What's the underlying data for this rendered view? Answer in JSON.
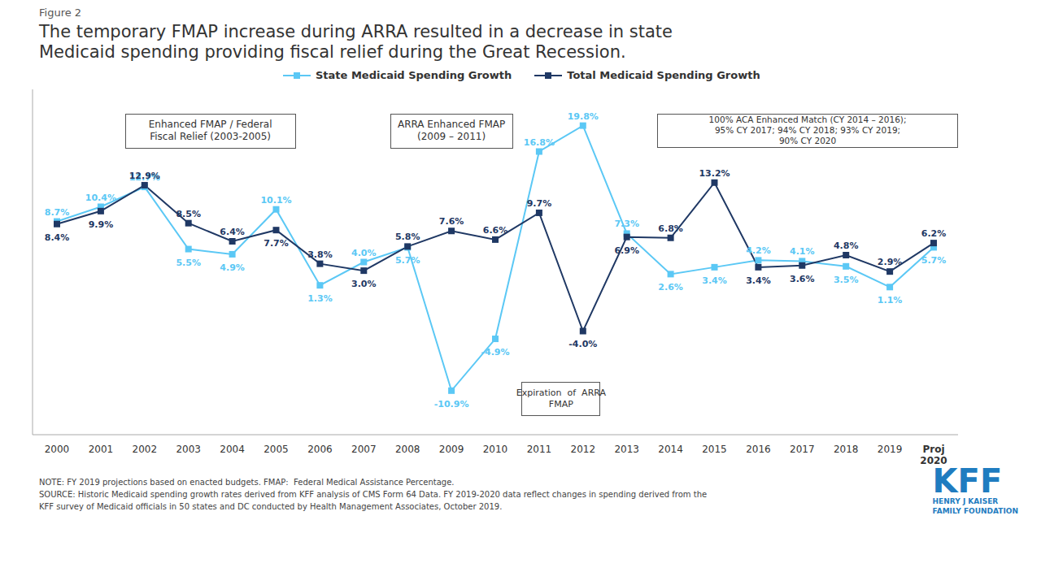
{
  "chart_data": {
    "type": "line",
    "subtitle": "Figure 2",
    "title": "The temporary FMAP increase during ARRA resulted in a decrease in state\nMedicaid spending providing fiscal relief during the Great Recession.",
    "categories": [
      "2000",
      "2001",
      "2002",
      "2003",
      "2004",
      "2005",
      "2006",
      "2007",
      "2008",
      "2009",
      "2010",
      "2011",
      "2012",
      "2013",
      "2014",
      "2015",
      "2016",
      "2017",
      "2018",
      "2019",
      "Proj\n2020"
    ],
    "series": [
      {
        "name": "State Medicaid Spending Growth",
        "color": "#5BC8F5",
        "marker": "square",
        "values": [
          8.7,
          10.4,
          12.7,
          5.5,
          4.9,
          10.1,
          1.3,
          4.0,
          5.7,
          -10.9,
          -4.9,
          16.8,
          19.8,
          7.3,
          2.6,
          3.4,
          4.2,
          4.1,
          3.5,
          1.1,
          5.7
        ],
        "value_labels": [
          "8.7%",
          "10.4%",
          "12.7%",
          "5.5%",
          "4.9%",
          "10.1%",
          "1.3%",
          "4.0%",
          "5.7%",
          "-10.9%",
          "-4.9%",
          "16.8%",
          "19.8%",
          "7.3%",
          "2.6%",
          "3.4%",
          "4.2%",
          "4.1%",
          "3.5%",
          "1.1%",
          "5.7%"
        ]
      },
      {
        "name": "Total Medicaid Spending Growth",
        "color": "#1F3864",
        "marker": "square",
        "values": [
          8.4,
          9.9,
          12.9,
          8.5,
          6.4,
          7.7,
          3.8,
          3.0,
          5.8,
          7.6,
          6.6,
          9.7,
          -4.0,
          6.9,
          6.8,
          13.2,
          3.4,
          3.6,
          4.8,
          2.9,
          6.2
        ],
        "value_labels": [
          "8.4%",
          "9.9%",
          "12.9%",
          "8.5%",
          "6.4%",
          "7.7%",
          "3.8%",
          "3.0%",
          "5.8%",
          "7.6%",
          "6.6%",
          "9.7%",
          "-4.0%",
          "6.9%",
          "6.8%",
          "13.2%",
          "3.4%",
          "3.6%",
          "4.8%",
          "2.9%",
          "6.2%"
        ]
      }
    ],
    "ylim": [
      -16,
      24
    ],
    "grid": false,
    "legend": "top",
    "data_labels": true,
    "tick_labels": "x",
    "annotations": [
      {
        "text": "Enhanced FMAP / Federal\nFiscal Relief (2003-2005)"
      },
      {
        "text": "ARRA Enhanced FMAP\n(2009 – 2011)"
      },
      {
        "text": "100% ACA Enhanced Match (CY 2014 – 2016);\n95% CY 2017; 94% CY 2018; 93% CY 2019;\n90% CY 2020"
      },
      {
        "text": "Expiration  of  ARRA\nFMAP"
      },
      {
        "text": "KFF",
        "color": "#1F7CC0"
      },
      {
        "text": "HENRY J KAISER\nFAMILY FOUNDATION",
        "color": "#1F7CC0"
      }
    ],
    "notes": [
      "NOTE: FY 2019 projections based on enacted budgets. FMAP:  Federal Medical Assistance Percentage.",
      "SOURCE: Historic Medicaid spending growth rates derived from KFF analysis of CMS Form 64 Data. FY 2019-2020 data reflect changes in spending derived from the",
      "KFF survey of Medicaid officials in 50 states and DC conducted by Health Management Associates, October 2019."
    ]
  }
}
